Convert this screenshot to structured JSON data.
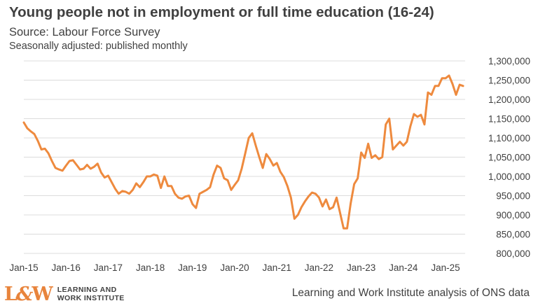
{
  "header": {
    "title": "Young people not in employment or full time education (16-24)",
    "source": "Source: Labour Force Survey",
    "note": "Seasonally adjusted: published monthly"
  },
  "footer": {
    "logo_text_line1": "LEARNING AND",
    "logo_text_line2": "WORK INSTITUTE",
    "credit": "Learning and Work Institute analysis of ONS data"
  },
  "colors": {
    "line": "#ee8a3e",
    "grid": "#dcdcdc",
    "text": "#404040"
  },
  "chart_data": {
    "type": "line",
    "title": "Young people not in employment or full time education (16-24)",
    "ylim": [
      800000,
      1300000
    ],
    "yticks": [
      800000,
      850000,
      900000,
      950000,
      1000000,
      1050000,
      1100000,
      1150000,
      1200000,
      1250000,
      1300000
    ],
    "ytick_labels": [
      "800,000",
      "850,000",
      "900,000",
      "950,000",
      "1,000,000",
      "1,050,000",
      "1,100,000",
      "1,150,000",
      "1,200,000",
      "1,250,000",
      "1,300,000"
    ],
    "xtick_labels": [
      "Jan-15",
      "Jan-16",
      "Jan-17",
      "Jan-18",
      "Jan-19",
      "Jan-20",
      "Jan-21",
      "Jan-22",
      "Jan-23",
      "Jan-24",
      "Jan-25"
    ],
    "grid": "horizontal",
    "series": [
      {
        "start": "Jan-15",
        "frequency": "monthly",
        "values": [
          1140000,
          1125000,
          1117000,
          1110000,
          1092000,
          1070000,
          1072000,
          1060000,
          1040000,
          1022000,
          1018000,
          1015000,
          1028000,
          1040000,
          1042000,
          1030000,
          1018000,
          1020000,
          1030000,
          1020000,
          1025000,
          1033000,
          1010000,
          997000,
          1002000,
          985000,
          968000,
          955000,
          962000,
          960000,
          955000,
          965000,
          982000,
          972000,
          985000,
          1000000,
          1000000,
          1005000,
          1002000,
          970000,
          1000000,
          975000,
          975000,
          955000,
          945000,
          942000,
          948000,
          950000,
          928000,
          918000,
          955000,
          960000,
          965000,
          972000,
          1005000,
          1028000,
          1022000,
          995000,
          990000,
          965000,
          978000,
          990000,
          1020000,
          1060000,
          1100000,
          1112000,
          1080000,
          1050000,
          1022000,
          1058000,
          1045000,
          1028000,
          1035000,
          1012000,
          998000,
          975000,
          945000,
          890000,
          900000,
          920000,
          935000,
          948000,
          958000,
          955000,
          945000,
          922000,
          940000,
          915000,
          920000,
          945000,
          905000,
          865000,
          865000,
          930000,
          980000,
          995000,
          1062000,
          1048000,
          1085000,
          1048000,
          1055000,
          1045000,
          1050000,
          1135000,
          1150000,
          1070000,
          1080000,
          1090000,
          1080000,
          1090000,
          1130000,
          1162000,
          1155000,
          1160000,
          1135000,
          1218000,
          1212000,
          1235000,
          1235000,
          1255000,
          1255000,
          1262000,
          1240000,
          1212000,
          1238000,
          1235000
        ]
      }
    ]
  }
}
